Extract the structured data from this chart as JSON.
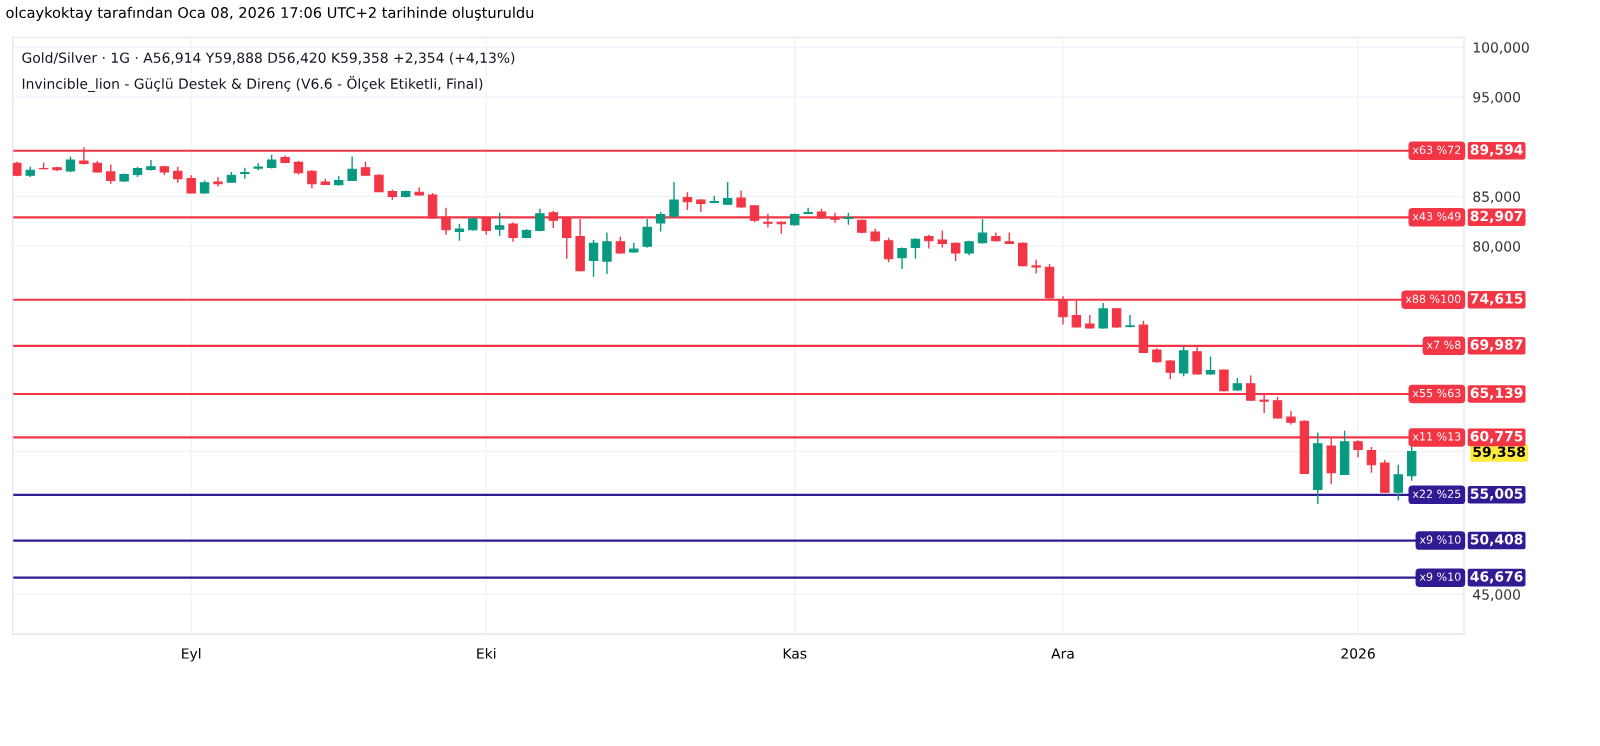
{
  "chart_data": {
    "type": "candlestick",
    "title": "olcaykoktay tarafından Oca 08, 2026 17:06 UTC+2 tarihinde oluşturuldu",
    "subtitle": "Gold/Silver · 1G · A56,914 Y59,888 D56,420 K59,358 +2,354 (+4,13%)",
    "annotations": [
      "Invincible_lion - Güçlü Destek & Direnç (V6.6 - Ölçek Etiketli, Final)",
      {
        "text": "x63 %72",
        "y": 89594
      },
      {
        "text": "x43 %49",
        "y": 82907
      },
      {
        "text": "x88 %100",
        "y": 74615
      },
      {
        "text": "x7 %8",
        "y": 69987
      },
      {
        "text": "x55 %63",
        "y": 65139
      },
      {
        "text": "x11 %13",
        "y": 60775
      },
      {
        "text": "x22 %25",
        "y": 55005
      },
      {
        "text": "x9 %10",
        "y": 50408
      },
      {
        "text": "x9 %10",
        "y": 46676
      }
    ],
    "categories": [
      null,
      null,
      null,
      null,
      null,
      null,
      null,
      null,
      null,
      null,
      null,
      null,
      null,
      "Eyl",
      null,
      null,
      null,
      null,
      null,
      null,
      null,
      null,
      null,
      null,
      null,
      null,
      null,
      null,
      null,
      null,
      null,
      null,
      null,
      null,
      null,
      "Eki",
      null,
      null,
      null,
      null,
      null,
      null,
      null,
      null,
      null,
      null,
      null,
      null,
      null,
      null,
      null,
      null,
      null,
      null,
      null,
      null,
      null,
      null,
      "Kas",
      null,
      null,
      null,
      null,
      null,
      null,
      null,
      null,
      null,
      null,
      null,
      null,
      null,
      null,
      null,
      null,
      null,
      null,
      null,
      "Ara",
      null,
      null,
      null,
      null,
      null,
      null,
      null,
      null,
      null,
      null,
      null,
      null,
      null,
      null,
      null,
      null,
      null,
      null,
      null,
      null,
      null,
      "2026",
      null,
      null,
      null,
      null
    ],
    "ohlc": [
      [
        88330,
        88500,
        87020,
        87130
      ],
      [
        87130,
        87980,
        86960,
        87640
      ],
      [
        87810,
        88390,
        87710,
        87780
      ],
      [
        87880,
        87980,
        87570,
        87680
      ],
      [
        87570,
        89010,
        87470,
        88670
      ],
      [
        88570,
        89940,
        88220,
        88330
      ],
      [
        88330,
        88570,
        87370,
        87470
      ],
      [
        87470,
        88220,
        86270,
        86610
      ],
      [
        86550,
        87300,
        86440,
        87200
      ],
      [
        87200,
        87980,
        86960,
        87810
      ],
      [
        87710,
        88670,
        87610,
        87980
      ],
      [
        87980,
        88090,
        87130,
        87470
      ],
      [
        87540,
        87980,
        86370,
        86790
      ],
      [
        86790,
        87130,
        85310,
        85350
      ],
      [
        85350,
        86610,
        85280,
        86370
      ],
      [
        86440,
        86960,
        86000,
        86270
      ],
      [
        86440,
        87470,
        86340,
        87130
      ],
      [
        87300,
        87880,
        86790,
        87400
      ],
      [
        87850,
        88330,
        87640,
        87950
      ],
      [
        87920,
        89180,
        87810,
        88670
      ],
      [
        88910,
        89110,
        88330,
        88430
      ],
      [
        88430,
        88570,
        87200,
        87400
      ],
      [
        87540,
        87640,
        85830,
        86270
      ],
      [
        86440,
        86790,
        86140,
        86200
      ],
      [
        86170,
        87060,
        86100,
        86610
      ],
      [
        86610,
        89010,
        86550,
        87740
      ],
      [
        87880,
        88500,
        87060,
        87130
      ],
      [
        87130,
        87230,
        85420,
        85480
      ],
      [
        85480,
        85690,
        84660,
        85000
      ],
      [
        85000,
        85590,
        84900,
        85480
      ],
      [
        85420,
        85930,
        85070,
        85140
      ],
      [
        85140,
        85350,
        82780,
        82850
      ],
      [
        82910,
        83870,
        81140,
        81650
      ],
      [
        81480,
        82260,
        80550,
        81720
      ],
      [
        81650,
        82850,
        81550,
        82740
      ],
      [
        82850,
        82950,
        81140,
        81580
      ],
      [
        81720,
        83360,
        81030,
        82060
      ],
      [
        82230,
        82400,
        80450,
        80890
      ],
      [
        80890,
        81720,
        80790,
        81580
      ],
      [
        81580,
        83770,
        81510,
        83260
      ],
      [
        83360,
        83530,
        81820,
        82610
      ],
      [
        82850,
        82950,
        78740,
        80890
      ],
      [
        80960,
        82740,
        77470,
        77540
      ],
      [
        78570,
        80620,
        76920,
        80280
      ],
      [
        78500,
        81370,
        77200,
        80450
      ],
      [
        80450,
        80960,
        79250,
        79320
      ],
      [
        79420,
        80350,
        79320,
        79700
      ],
      [
        80000,
        82740,
        79830,
        81890
      ],
      [
        82330,
        83430,
        81480,
        83190
      ],
      [
        83020,
        86440,
        82950,
        84630
      ],
      [
        84900,
        85420,
        83630,
        84460
      ],
      [
        84630,
        84730,
        83430,
        84290
      ],
      [
        84390,
        85070,
        84320,
        84490
      ],
      [
        84220,
        86440,
        84150,
        84800
      ],
      [
        84830,
        85590,
        83870,
        83940
      ],
      [
        84050,
        84110,
        82400,
        82610
      ],
      [
        82400,
        83260,
        81890,
        82300
      ],
      [
        82400,
        82500,
        81240,
        82260
      ],
      [
        82160,
        83290,
        82060,
        83190
      ],
      [
        83290,
        83870,
        83220,
        83390
      ],
      [
        83430,
        83770,
        82780,
        82850
      ],
      [
        82810,
        83360,
        82330,
        82710
      ],
      [
        82780,
        83360,
        82160,
        82880
      ],
      [
        82610,
        82680,
        81310,
        81410
      ],
      [
        81410,
        81750,
        80450,
        80550
      ],
      [
        80550,
        80860,
        78390,
        78740
      ],
      [
        78840,
        79870,
        77710,
        79760
      ],
      [
        79870,
        80790,
        78740,
        80690
      ],
      [
        80960,
        81140,
        79760,
        80550
      ],
      [
        80620,
        81580,
        79870,
        80280
      ],
      [
        80280,
        80380,
        78500,
        79320
      ],
      [
        79320,
        80550,
        79080,
        80450
      ],
      [
        80350,
        82740,
        80280,
        81310
      ],
      [
        80960,
        81370,
        80480,
        80550
      ],
      [
        80450,
        81370,
        80210,
        80280
      ],
      [
        80280,
        80380,
        77980,
        78050
      ],
      [
        78020,
        78630,
        77260,
        77910
      ],
      [
        77880,
        78220,
        74730,
        74800
      ],
      [
        74630,
        74970,
        72130,
        72910
      ],
      [
        73020,
        74520,
        71820,
        71890
      ],
      [
        72160,
        73080,
        71720,
        71780
      ],
      [
        71780,
        74280,
        71720,
        73700
      ],
      [
        73700,
        73770,
        71780,
        71890
      ],
      [
        71920,
        73080,
        71850,
        71990
      ],
      [
        72060,
        72500,
        69250,
        69320
      ],
      [
        69560,
        69730,
        68290,
        68390
      ],
      [
        68460,
        68560,
        66650,
        67330
      ],
      [
        67260,
        69930,
        66920,
        69490
      ],
      [
        69390,
        69830,
        67090,
        67160
      ],
      [
        67160,
        68910,
        67060,
        67500
      ],
      [
        67540,
        67610,
        65380,
        65480
      ],
      [
        65550,
        66750,
        65450,
        66170
      ],
      [
        66170,
        66990,
        64450,
        64520
      ],
      [
        64520,
        65210,
        63220,
        64420
      ],
      [
        64450,
        64870,
        62640,
        62740
      ],
      [
        62810,
        63430,
        62060,
        62300
      ],
      [
        62400,
        62470,
        57090,
        57160
      ],
      [
        55550,
        61270,
        54080,
        60140
      ],
      [
        59900,
        60760,
        56060,
        57230
      ],
      [
        57060,
        61440,
        56990,
        60340
      ],
      [
        60340,
        60480,
        58770,
        59560
      ],
      [
        59450,
        59800,
        57230,
        58020
      ],
      [
        58190,
        58530,
        55210,
        55270
      ],
      [
        55270,
        58020,
        54420,
        57004
      ],
      [
        56914,
        59888,
        56420,
        59358
      ]
    ],
    "colors": [
      "#f23645",
      "#089981",
      "#f23645",
      "#f23645",
      "#089981",
      "#f23645",
      "#f23645",
      "#f23645",
      "#089981",
      "#089981",
      "#089981",
      "#f23645",
      "#f23645",
      "#f23645",
      "#089981",
      "#f23645",
      "#089981",
      "#089981",
      "#089981",
      "#089981",
      "#f23645",
      "#f23645",
      "#f23645",
      "#f23645",
      "#089981",
      "#089981",
      "#f23645",
      "#f23645",
      "#f23645",
      "#089981",
      "#f23645",
      "#f23645",
      "#f23645",
      "#089981",
      "#089981",
      "#f23645",
      "#089981",
      "#f23645",
      "#089981",
      "#089981",
      "#f23645",
      "#f23645",
      "#f23645",
      "#089981",
      "#089981",
      "#f23645",
      "#089981",
      "#089981",
      "#089981",
      "#089981",
      "#f23645",
      "#f23645",
      "#089981",
      "#089981",
      "#f23645",
      "#f23645",
      "#f23645",
      "#f23645",
      "#089981",
      "#089981",
      "#f23645",
      "#f23645",
      "#089981",
      "#f23645",
      "#f23645",
      "#f23645",
      "#089981",
      "#089981",
      "#f23645",
      "#f23645",
      "#f23645",
      "#089981",
      "#089981",
      "#f23645",
      "#f23645",
      "#f23645",
      "#f23645",
      "#f23645",
      "#f23645",
      "#f23645",
      "#f23645",
      "#089981",
      "#f23645",
      "#089981",
      "#f23645",
      "#f23645",
      "#f23645",
      "#089981",
      "#f23645",
      "#089981",
      "#f23645",
      "#089981",
      "#f23645",
      "#f23645",
      "#f23645",
      "#f23645",
      "#f23645",
      "#089981",
      "#f23645",
      "#089981",
      "#f23645",
      "#f23645",
      "#f23645",
      "#089981",
      "#089981"
    ],
    "ylim": [
      41000,
      101000
    ],
    "yticks": [
      {
        "value": 45000,
        "label": "45,000"
      },
      {
        "value": 80000,
        "label": "80,000"
      },
      {
        "value": 85000,
        "label": "85,000"
      },
      {
        "value": 95000,
        "label": "95,000"
      },
      {
        "value": 100000,
        "label": "100,000"
      },
      {
        "value": 59358,
        "label": "59,358"
      }
    ],
    "ref_lines": [
      {
        "axis": "y",
        "value": 89594,
        "label": "89,594",
        "color": "#f23645"
      },
      {
        "axis": "y",
        "value": 82907,
        "label": "82,907",
        "color": "#f23645"
      },
      {
        "axis": "y",
        "value": 74615,
        "label": "74,615",
        "color": "#f23645"
      },
      {
        "axis": "y",
        "value": 69987,
        "label": "69,987",
        "color": "#f23645"
      },
      {
        "axis": "y",
        "value": 65139,
        "label": "65,139",
        "color": "#f23645"
      },
      {
        "axis": "y",
        "value": 60775,
        "label": "60,775",
        "color": "#f23645"
      },
      {
        "axis": "y",
        "value": 55005,
        "label": "55,005",
        "color": "#311b92"
      },
      {
        "axis": "y",
        "value": 50408,
        "label": "50,408",
        "color": "#311b92"
      },
      {
        "axis": "y",
        "value": 46676,
        "label": "46,676",
        "color": "#311b92"
      }
    ],
    "grid": true
  }
}
